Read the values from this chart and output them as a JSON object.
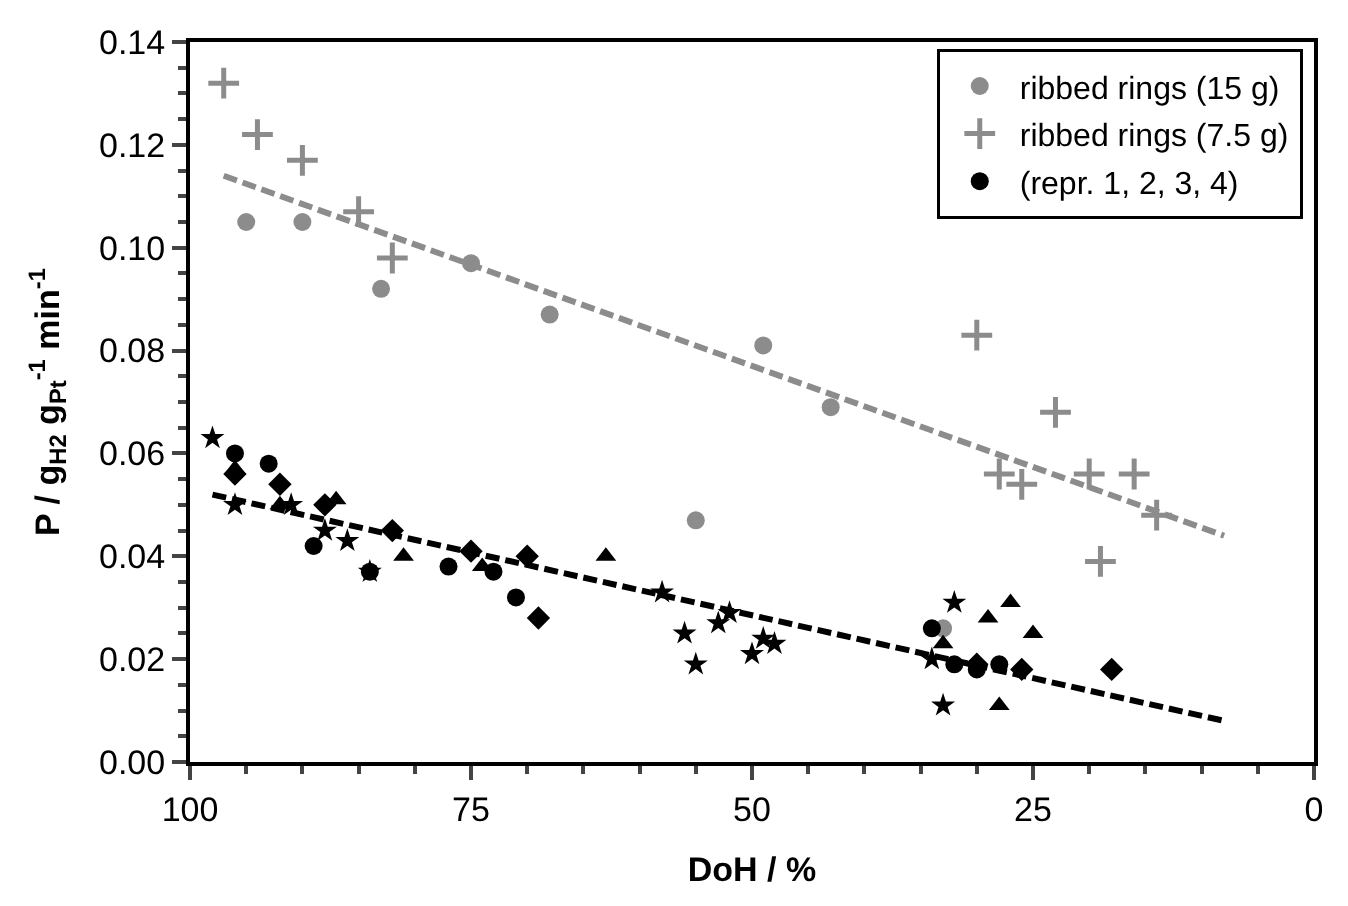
{
  "chart_data": {
    "type": "scatter",
    "xlabel": "DoH / %",
    "ylabel": "P / g$_{H2}$ g$_{Pt}$$^{-1}$ min$^{-1}$",
    "xlim": [
      100,
      0
    ],
    "xticks": [
      100,
      75,
      50,
      25,
      0
    ],
    "ylim": [
      0,
      0.14
    ],
    "yticks": [
      {
        "value": 0,
        "label": "0.00"
      },
      {
        "value": 0.02,
        "label": "0.02"
      },
      {
        "value": 0.04,
        "label": "0.04"
      },
      {
        "value": 0.06,
        "label": "0.06"
      },
      {
        "value": 0.08,
        "label": "0.08"
      },
      {
        "value": 0.1,
        "label": "0.10"
      },
      {
        "value": 0.12,
        "label": "0.12"
      },
      {
        "value": 0.14,
        "label": "0.14"
      }
    ],
    "legend": "top right",
    "series": [
      {
        "name": "ribbed rings (15 g)",
        "color": "#8c8c8c",
        "marker": "circle",
        "x": [
          95,
          90,
          83,
          75,
          68,
          55,
          49,
          43,
          33
        ],
        "values": [
          0.105,
          0.105,
          0.092,
          0.097,
          0.087,
          0.047,
          0.081,
          0.069,
          0.026
        ]
      },
      {
        "name": "ribbed rings (7.5 g)",
        "color": "#8c8c8c",
        "marker": "cross",
        "x": [
          97,
          94,
          90,
          85,
          82,
          30,
          23,
          28,
          26,
          20,
          16,
          19,
          14
        ],
        "values": [
          0.132,
          0.122,
          0.117,
          0.107,
          0.098,
          0.083,
          0.068,
          0.056,
          0.054,
          0.056,
          0.056,
          0.039,
          0.048
        ]
      },
      {
        "name": "(repr. 1, 2, 3, 4)",
        "color": "#000000",
        "marker": "circle",
        "x": [
          96,
          93,
          89,
          84,
          77,
          73,
          71,
          34,
          32,
          30,
          28
        ],
        "values": [
          0.06,
          0.058,
          0.042,
          0.037,
          0.038,
          0.037,
          0.032,
          0.026,
          0.019,
          0.018,
          0.019
        ]
      },
      {
        "color": "#000000",
        "marker": "diamond",
        "x": [
          96,
          92,
          88,
          82,
          75,
          70,
          69,
          30,
          26,
          18
        ],
        "values": [
          0.056,
          0.054,
          0.05,
          0.045,
          0.041,
          0.04,
          0.028,
          0.019,
          0.018,
          0.018
        ]
      },
      {
        "color": "#000000",
        "marker": "triangle",
        "x": [
          96,
          92,
          87,
          81,
          74,
          63,
          33,
          29,
          27,
          25,
          28
        ],
        "values": [
          0.057,
          0.05,
          0.051,
          0.04,
          0.038,
          0.04,
          0.023,
          0.028,
          0.031,
          0.025,
          0.011
        ]
      },
      {
        "color": "#000000",
        "marker": "star",
        "x": [
          98,
          96,
          91,
          88,
          86,
          84,
          58,
          56,
          55,
          53,
          52,
          50,
          49,
          48,
          34,
          33,
          32
        ],
        "values": [
          0.063,
          0.05,
          0.05,
          0.045,
          0.043,
          0.037,
          0.033,
          0.025,
          0.019,
          0.027,
          0.029,
          0.021,
          0.024,
          0.023,
          0.02,
          0.011,
          0.031
        ]
      },
      {
        "type": "line",
        "line_style": "dashed",
        "color": "#8c8c8c",
        "x": [
          97,
          8
        ],
        "values": [
          0.114,
          0.044
        ]
      },
      {
        "type": "line",
        "line_style": "dashed",
        "color": "#000000",
        "x": [
          98,
          8
        ],
        "values": [
          0.052,
          0.008
        ]
      }
    ]
  }
}
